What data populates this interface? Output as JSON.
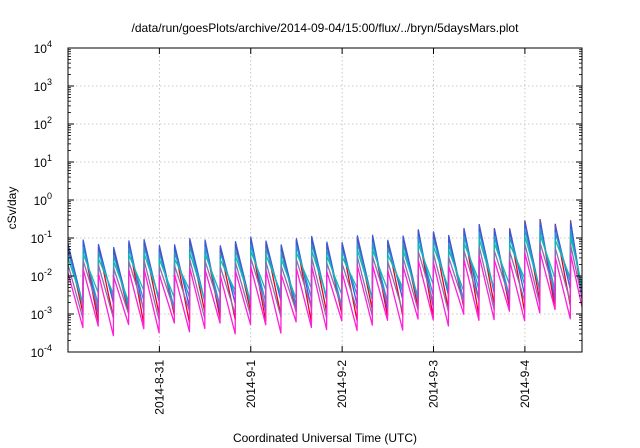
{
  "chart_data": {
    "type": "line",
    "title": "/data/run/goesPlots/archive/2014-09-04/15:00/flux/../bryn/5daysMars.plot",
    "xlabel": "Coordinated Universal Time (UTC)",
    "ylabel": "cSv/day",
    "yscale": "log",
    "ylim": [
      0.0001,
      10000
    ],
    "y_ticks": [
      {
        "base": "10",
        "exp": "-4",
        "value": 0.0001
      },
      {
        "base": "10",
        "exp": "-3",
        "value": 0.001
      },
      {
        "base": "10",
        "exp": "-2",
        "value": 0.01
      },
      {
        "base": "10",
        "exp": "-1",
        "value": 0.1
      },
      {
        "base": "10",
        "exp": "0",
        "value": 1
      },
      {
        "base": "10",
        "exp": "1",
        "value": 10
      },
      {
        "base": "10",
        "exp": "2",
        "value": 100
      },
      {
        "base": "10",
        "exp": "3",
        "value": 1000
      },
      {
        "base": "10",
        "exp": "4",
        "value": 10000
      }
    ],
    "xlim": [
      "2014-08-30 00:00",
      "2014-09-04 15:00"
    ],
    "x_ticks": [
      "2014-8-31",
      "2014-9-1",
      "2014-9-2",
      "2014-9-3",
      "2014-9-4"
    ],
    "grid": true,
    "cycle_hours": 4,
    "series": [
      {
        "color": "#e8001c",
        "peak_start": 0.06,
        "peak_end": 0.35,
        "trough_start": 0.0008,
        "trough_end": 0.002
      },
      {
        "color": "#3a5bd9",
        "peak_start": 0.07,
        "peak_end": 0.32,
        "trough_start": 0.0015,
        "trough_end": 0.004
      },
      {
        "color": "#1e9bd6",
        "peak_start": 0.045,
        "peak_end": 0.2,
        "trough_start": 0.002,
        "trough_end": 0.006
      },
      {
        "color": "#17b8b0",
        "peak_start": 0.03,
        "peak_end": 0.13,
        "trough_start": 0.003,
        "trough_end": 0.009
      },
      {
        "color": "#8a6fb0",
        "peak_start": 0.02,
        "peak_end": 0.08,
        "trough_start": 0.001,
        "trough_end": 0.003
      },
      {
        "color": "#ff1fd6",
        "peak_start": 0.012,
        "peak_end": 0.045,
        "trough_start": 0.0004,
        "trough_end": 0.0013
      }
    ]
  }
}
